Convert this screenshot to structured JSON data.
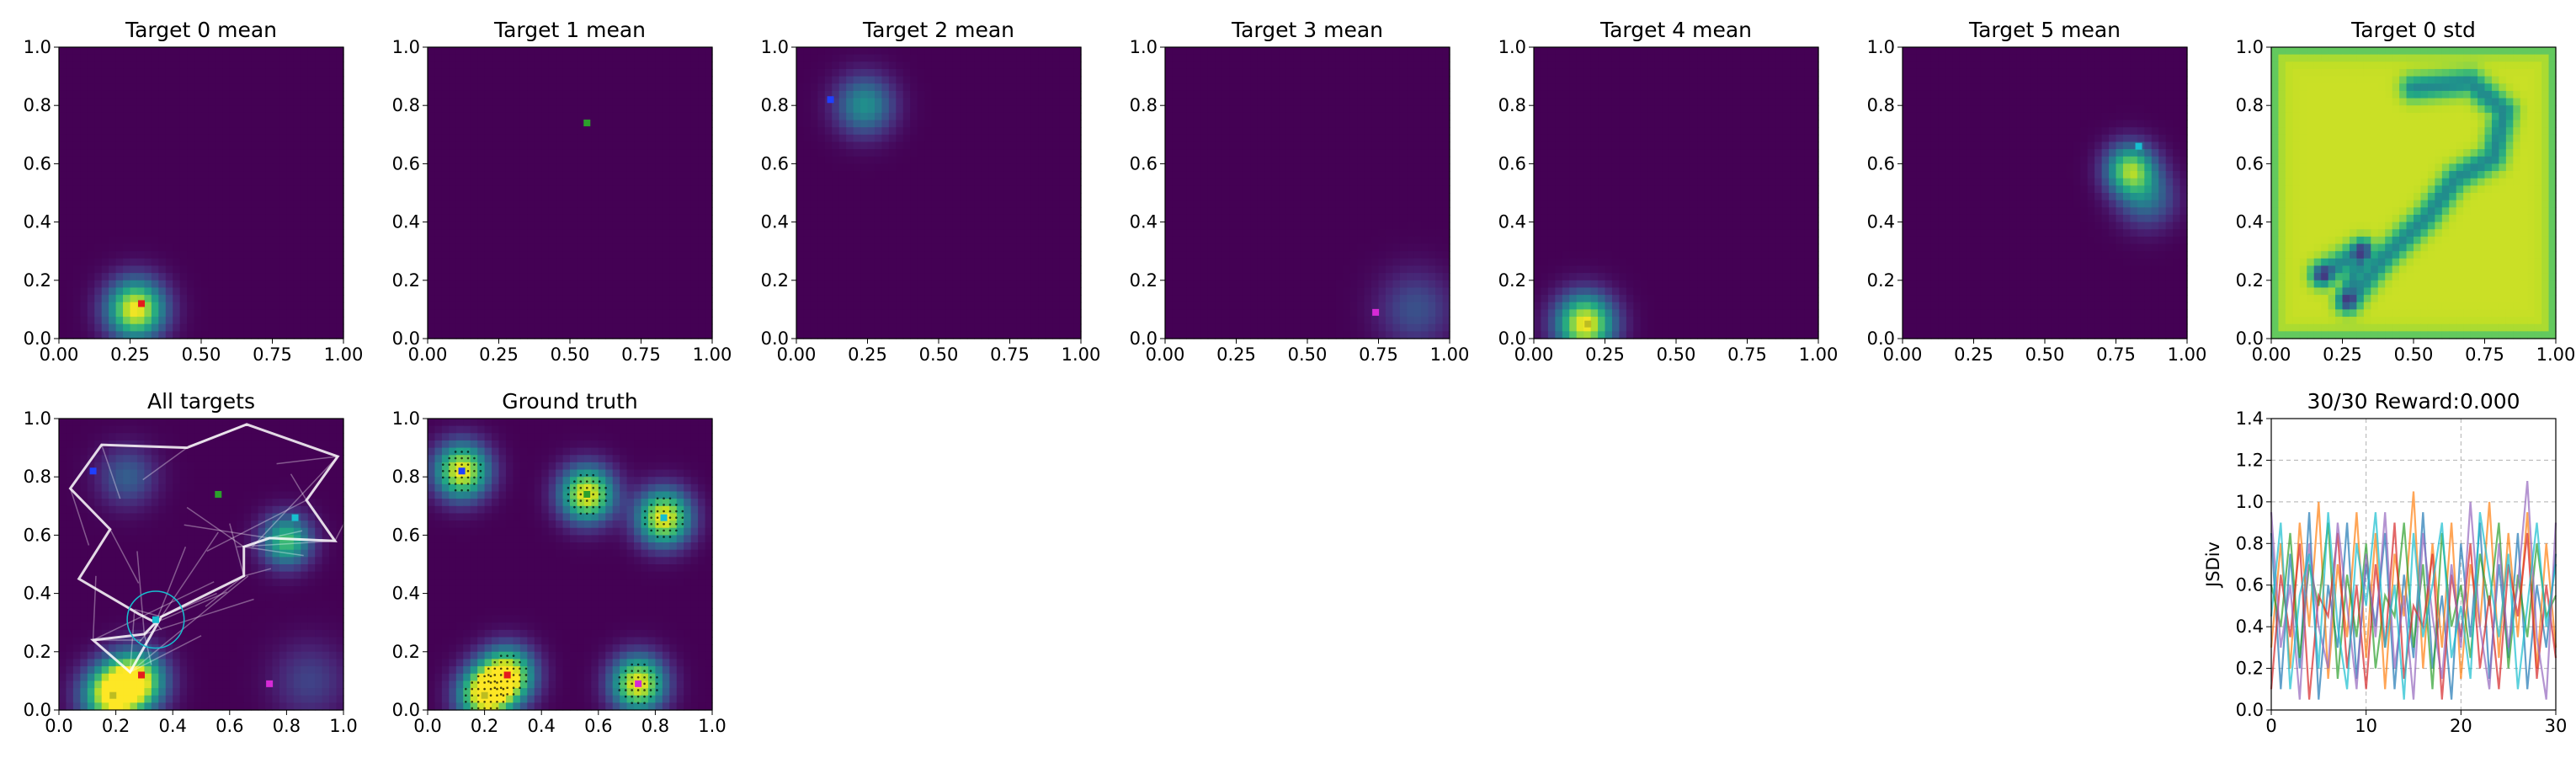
{
  "chart_data": [
    {
      "type": "heatmap",
      "title": "Target 0 mean",
      "xlim": [
        0,
        1
      ],
      "ylim": [
        0,
        1
      ],
      "xticks": [
        "0.00",
        "0.25",
        "0.50",
        "0.75",
        "1.00"
      ],
      "yticks": [
        "0.0",
        "0.2",
        "0.4",
        "0.6",
        "0.8",
        "1.0"
      ],
      "colormap": "viridis",
      "blobs": [
        {
          "x": 0.27,
          "y": 0.1,
          "sigma": 0.07,
          "amp": 1.0
        }
      ],
      "markers": [
        {
          "x": 0.29,
          "y": 0.12,
          "color": "#e41a1c"
        }
      ]
    },
    {
      "type": "heatmap",
      "title": "Target 1 mean",
      "xlim": [
        0,
        1
      ],
      "ylim": [
        0,
        1
      ],
      "xticks": [
        "0.00",
        "0.25",
        "0.50",
        "0.75",
        "1.00"
      ],
      "yticks": [
        "0.0",
        "0.2",
        "0.4",
        "0.6",
        "0.8",
        "1.0"
      ],
      "colormap": "viridis",
      "blobs": [],
      "markers": [
        {
          "x": 0.56,
          "y": 0.74,
          "color": "#2ca02c"
        }
      ]
    },
    {
      "type": "heatmap",
      "title": "Target 2 mean",
      "xlim": [
        0,
        1
      ],
      "ylim": [
        0,
        1
      ],
      "xticks": [
        "0.00",
        "0.25",
        "0.50",
        "0.75",
        "1.00"
      ],
      "yticks": [
        "0.0",
        "0.2",
        "0.4",
        "0.6",
        "0.8",
        "1.0"
      ],
      "colormap": "viridis",
      "blobs": [
        {
          "x": 0.24,
          "y": 0.8,
          "sigma": 0.07,
          "amp": 0.5
        }
      ],
      "markers": [
        {
          "x": 0.12,
          "y": 0.82,
          "color": "#1f3fff"
        }
      ]
    },
    {
      "type": "heatmap",
      "title": "Target 3 mean",
      "xlim": [
        0,
        1
      ],
      "ylim": [
        0,
        1
      ],
      "xticks": [
        "0.00",
        "0.25",
        "0.50",
        "0.75",
        "1.00"
      ],
      "yticks": [
        "0.0",
        "0.2",
        "0.4",
        "0.6",
        "0.8",
        "1.0"
      ],
      "colormap": "viridis",
      "blobs": [
        {
          "x": 0.88,
          "y": 0.1,
          "sigma": 0.09,
          "amp": 0.25
        }
      ],
      "markers": [
        {
          "x": 0.74,
          "y": 0.09,
          "color": "#d62ad6"
        }
      ]
    },
    {
      "type": "heatmap",
      "title": "Target 4 mean",
      "xlim": [
        0,
        1
      ],
      "ylim": [
        0,
        1
      ],
      "xticks": [
        "0.00",
        "0.25",
        "0.50",
        "0.75",
        "1.00"
      ],
      "yticks": [
        "0.0",
        "0.2",
        "0.4",
        "0.6",
        "0.8",
        "1.0"
      ],
      "colormap": "viridis",
      "blobs": [
        {
          "x": 0.18,
          "y": 0.05,
          "sigma": 0.07,
          "amp": 1.0
        }
      ],
      "markers": [
        {
          "x": 0.19,
          "y": 0.05,
          "color": "#bcbd22"
        }
      ]
    },
    {
      "type": "heatmap",
      "title": "Target 5 mean",
      "xlim": [
        0,
        1
      ],
      "ylim": [
        0,
        1
      ],
      "xticks": [
        "0.00",
        "0.25",
        "0.50",
        "0.75",
        "1.00"
      ],
      "yticks": [
        "0.0",
        "0.2",
        "0.4",
        "0.6",
        "0.8",
        "1.0"
      ],
      "colormap": "viridis",
      "blobs": [
        {
          "x": 0.8,
          "y": 0.58,
          "sigma": 0.06,
          "amp": 0.8
        },
        {
          "x": 0.86,
          "y": 0.48,
          "sigma": 0.07,
          "amp": 0.35
        }
      ],
      "markers": [
        {
          "x": 0.83,
          "y": 0.66,
          "color": "#17becf"
        }
      ]
    },
    {
      "type": "heatmap",
      "title": "Target 0 std",
      "xlim": [
        0,
        1
      ],
      "ylim": [
        0,
        1
      ],
      "xticks": [
        "0.00",
        "0.25",
        "0.50",
        "0.75",
        "1.00"
      ],
      "yticks": [
        "0.0",
        "0.2",
        "0.4",
        "0.6",
        "0.8",
        "1.0"
      ],
      "colormap": "viridis",
      "base": 0.92,
      "path": [
        [
          0.18,
          0.22
        ],
        [
          0.32,
          0.3
        ],
        [
          0.27,
          0.13
        ],
        [
          0.4,
          0.28
        ],
        [
          0.55,
          0.42
        ],
        [
          0.65,
          0.55
        ],
        [
          0.78,
          0.62
        ],
        [
          0.82,
          0.78
        ],
        [
          0.7,
          0.88
        ],
        [
          0.5,
          0.86
        ]
      ],
      "dips": [
        {
          "x": 0.18,
          "y": 0.22
        },
        {
          "x": 0.32,
          "y": 0.3
        },
        {
          "x": 0.27,
          "y": 0.13
        }
      ],
      "markers": []
    },
    {
      "type": "heatmap",
      "title": "All targets",
      "xlim": [
        0,
        1
      ],
      "ylim": [
        0,
        1
      ],
      "xticks": [
        "0.0",
        "0.2",
        "0.4",
        "0.6",
        "0.8",
        "1.0"
      ],
      "yticks": [
        "0.0",
        "0.2",
        "0.4",
        "0.6",
        "0.8",
        "1.0"
      ],
      "colormap": "viridis",
      "blobs": [
        {
          "x": 0.27,
          "y": 0.1,
          "sigma": 0.07,
          "amp": 1.0
        },
        {
          "x": 0.18,
          "y": 0.05,
          "sigma": 0.07,
          "amp": 0.9
        },
        {
          "x": 0.8,
          "y": 0.58,
          "sigma": 0.06,
          "amp": 0.7
        },
        {
          "x": 0.24,
          "y": 0.8,
          "sigma": 0.07,
          "amp": 0.3
        },
        {
          "x": 0.88,
          "y": 0.1,
          "sigma": 0.09,
          "amp": 0.2
        }
      ],
      "markers": [
        {
          "x": 0.29,
          "y": 0.12,
          "color": "#e41a1c"
        },
        {
          "x": 0.56,
          "y": 0.74,
          "color": "#2ca02c"
        },
        {
          "x": 0.12,
          "y": 0.82,
          "color": "#1f3fff"
        },
        {
          "x": 0.74,
          "y": 0.09,
          "color": "#d62ad6"
        },
        {
          "x": 0.19,
          "y": 0.05,
          "color": "#bcbd22"
        },
        {
          "x": 0.83,
          "y": 0.66,
          "color": "#17becf"
        },
        {
          "x": 0.34,
          "y": 0.31,
          "color": "#17becf"
        }
      ],
      "agent_path": [
        [
          0.34,
          0.3
        ],
        [
          0.3,
          0.26
        ],
        [
          0.12,
          0.24
        ],
        [
          0.25,
          0.13
        ],
        [
          0.36,
          0.32
        ],
        [
          0.65,
          0.46
        ],
        [
          0.65,
          0.56
        ],
        [
          0.74,
          0.59
        ],
        [
          0.97,
          0.58
        ],
        [
          0.87,
          0.72
        ],
        [
          0.98,
          0.87
        ],
        [
          0.66,
          0.98
        ],
        [
          0.45,
          0.9
        ],
        [
          0.15,
          0.91
        ],
        [
          0.04,
          0.76
        ],
        [
          0.18,
          0.62
        ],
        [
          0.07,
          0.45
        ],
        [
          0.28,
          0.33
        ]
      ],
      "circle": {
        "x": 0.34,
        "y": 0.31,
        "r": 0.1,
        "color": "#17becf"
      }
    },
    {
      "type": "heatmap",
      "title": "Ground truth",
      "xlim": [
        0,
        1
      ],
      "ylim": [
        0,
        1
      ],
      "xticks": [
        "0.0",
        "0.2",
        "0.4",
        "0.6",
        "0.8",
        "1.0"
      ],
      "yticks": [
        "0.0",
        "0.2",
        "0.4",
        "0.6",
        "0.8",
        "1.0"
      ],
      "colormap": "viridis",
      "blobs": [
        {
          "x": 0.12,
          "y": 0.82,
          "sigma": 0.065,
          "amp": 1.0
        },
        {
          "x": 0.56,
          "y": 0.74,
          "sigma": 0.065,
          "amp": 1.0
        },
        {
          "x": 0.83,
          "y": 0.66,
          "sigma": 0.065,
          "amp": 1.0
        },
        {
          "x": 0.28,
          "y": 0.12,
          "sigma": 0.065,
          "amp": 1.0
        },
        {
          "x": 0.2,
          "y": 0.05,
          "sigma": 0.065,
          "amp": 1.0
        },
        {
          "x": 0.74,
          "y": 0.09,
          "sigma": 0.065,
          "amp": 1.0
        }
      ],
      "markers": [
        {
          "x": 0.12,
          "y": 0.82,
          "color": "#1f3fff"
        },
        {
          "x": 0.56,
          "y": 0.74,
          "color": "#2ca02c"
        },
        {
          "x": 0.83,
          "y": 0.66,
          "color": "#17becf"
        },
        {
          "x": 0.28,
          "y": 0.12,
          "color": "#e41a1c"
        },
        {
          "x": 0.2,
          "y": 0.05,
          "color": "#bcbd22"
        },
        {
          "x": 0.74,
          "y": 0.09,
          "color": "#d62ad6"
        }
      ]
    },
    {
      "type": "line",
      "title": "30/30 Reward:0.000",
      "xlabel": "",
      "ylabel": "JSDiv",
      "xlim": [
        0,
        30
      ],
      "ylim": [
        0,
        1.4
      ],
      "xticks": [
        "0",
        "10",
        "20",
        "30"
      ],
      "yticks": [
        "0.0",
        "0.2",
        "0.4",
        "0.6",
        "0.8",
        "1.0",
        "1.2",
        "1.4"
      ],
      "grid": true,
      "series": [
        {
          "color": "#1f77b4",
          "values": [
            0.85,
            0.1,
            0.75,
            0.2,
            0.95,
            0.05,
            0.6,
            0.3,
            0.9,
            0.15,
            0.7,
            0.4,
            0.85,
            0.1,
            0.65,
            0.25,
            0.95,
            0.2,
            0.55,
            0.05,
            0.8,
            0.35,
            0.9,
            0.15,
            0.7,
            0.25,
            0.85,
            0.1,
            0.6,
            0.3,
            0.75
          ]
        },
        {
          "color": "#ff7f0e",
          "values": [
            0.3,
            0.8,
            0.2,
            0.9,
            0.4,
            1.0,
            0.15,
            0.7,
            0.35,
            0.95,
            0.25,
            0.85,
            0.1,
            0.75,
            0.45,
            1.05,
            0.2,
            0.8,
            0.3,
            0.9,
            0.15,
            0.7,
            0.4,
            1.0,
            0.25,
            0.85,
            0.35,
            0.95,
            0.2,
            0.8,
            0.3
          ]
        },
        {
          "color": "#2ca02c",
          "values": [
            0.6,
            0.4,
            0.85,
            0.25,
            0.7,
            0.5,
            0.9,
            0.15,
            0.65,
            0.35,
            0.8,
            0.2,
            0.55,
            0.45,
            0.9,
            0.3,
            0.7,
            0.1,
            0.85,
            0.4,
            0.6,
            0.25,
            0.75,
            0.5,
            0.9,
            0.2,
            0.65,
            0.35,
            0.8,
            0.45,
            0.55
          ]
        },
        {
          "color": "#d62728",
          "values": [
            0.1,
            0.65,
            0.35,
            0.8,
            0.05,
            0.55,
            0.45,
            0.85,
            0.2,
            0.6,
            0.1,
            0.7,
            0.3,
            0.9,
            0.15,
            0.5,
            0.4,
            0.75,
            0.05,
            0.65,
            0.35,
            0.8,
            0.2,
            0.55,
            0.1,
            0.7,
            0.45,
            0.85,
            0.15,
            0.6,
            0.25
          ]
        },
        {
          "color": "#9467bd",
          "values": [
            0.95,
            0.3,
            0.6,
            0.05,
            0.8,
            0.4,
            0.2,
            0.9,
            0.5,
            0.1,
            0.75,
            0.35,
            0.95,
            0.2,
            0.55,
            0.05,
            0.85,
            0.45,
            0.15,
            0.7,
            0.3,
            1.0,
            0.4,
            0.1,
            0.8,
            0.3,
            0.6,
            1.1,
            0.35,
            0.05,
            0.9
          ]
        },
        {
          "color": "#17becf",
          "values": [
            0.45,
            0.9,
            0.1,
            0.55,
            0.75,
            0.2,
            0.95,
            0.4,
            0.1,
            0.8,
            0.5,
            0.95,
            0.3,
            0.6,
            0.05,
            0.85,
            0.35,
            0.6,
            0.9,
            0.25,
            0.5,
            0.15,
            0.95,
            0.65,
            0.35,
            0.75,
            0.1,
            0.5,
            0.9,
            0.4,
            0.7
          ]
        }
      ]
    }
  ]
}
